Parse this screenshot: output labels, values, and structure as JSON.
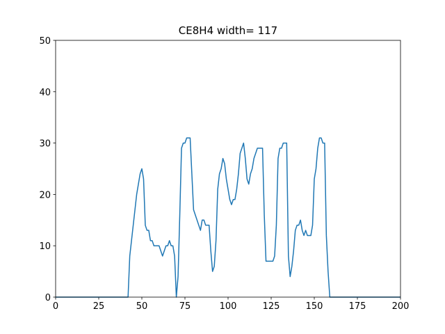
{
  "chart_data": {
    "type": "line",
    "title": "CE8H4 width= 117",
    "x": [
      0,
      1,
      2,
      3,
      4,
      5,
      6,
      7,
      8,
      9,
      10,
      11,
      12,
      13,
      14,
      15,
      16,
      17,
      18,
      19,
      20,
      21,
      22,
      23,
      24,
      25,
      26,
      27,
      28,
      29,
      30,
      31,
      32,
      33,
      34,
      35,
      36,
      37,
      38,
      39,
      40,
      41,
      42,
      43,
      44,
      45,
      46,
      47,
      48,
      49,
      50,
      51,
      52,
      53,
      54,
      55,
      56,
      57,
      58,
      59,
      60,
      61,
      62,
      63,
      64,
      65,
      66,
      67,
      68,
      69,
      70,
      71,
      72,
      73,
      74,
      75,
      76,
      77,
      78,
      79,
      80,
      81,
      82,
      83,
      84,
      85,
      86,
      87,
      88,
      89,
      90,
      91,
      92,
      93,
      94,
      95,
      96,
      97,
      98,
      99,
      100,
      101,
      102,
      103,
      104,
      105,
      106,
      107,
      108,
      109,
      110,
      111,
      112,
      113,
      114,
      115,
      116,
      117,
      118,
      119,
      120,
      121,
      122,
      123,
      124,
      125,
      126,
      127,
      128,
      129,
      130,
      131,
      132,
      133,
      134,
      135,
      136,
      137,
      138,
      139,
      140,
      141,
      142,
      143,
      144,
      145,
      146,
      147,
      148,
      149,
      150,
      151,
      152,
      153,
      154,
      155,
      156,
      157,
      158,
      159,
      160,
      161,
      162,
      163,
      164,
      165,
      166,
      167,
      168,
      169,
      170,
      171,
      172,
      173,
      174,
      175,
      176,
      177,
      178,
      179,
      180,
      181,
      182,
      183,
      184,
      185,
      186,
      187,
      188,
      189,
      190,
      191,
      192,
      193,
      194,
      195,
      196,
      197,
      198,
      199,
      200
    ],
    "series": [
      {
        "color": "#1f77b4",
        "values": [
          0,
          0,
          0,
          0,
          0,
          0,
          0,
          0,
          0,
          0,
          0,
          0,
          0,
          0,
          0,
          0,
          0,
          0,
          0,
          0,
          0,
          0,
          0,
          0,
          0,
          0,
          0,
          0,
          0,
          0,
          0,
          0,
          0,
          0,
          0,
          0,
          0,
          0,
          0,
          0,
          0,
          0,
          0,
          8,
          11,
          14,
          17,
          20,
          22,
          24,
          25,
          23,
          14,
          13,
          13,
          11,
          11,
          10,
          10,
          10,
          10,
          9,
          8,
          9,
          10,
          10,
          11,
          10,
          10,
          8,
          0,
          4,
          16,
          29,
          30,
          30,
          31,
          31,
          31,
          24,
          17,
          16,
          15,
          14,
          13,
          15,
          15,
          14,
          14,
          14,
          9,
          5,
          6,
          11,
          21,
          24,
          25,
          27,
          26,
          23,
          21,
          19,
          18,
          19,
          19,
          21,
          24,
          28,
          29,
          30,
          27,
          23,
          22,
          24,
          25,
          27,
          28,
          29,
          29,
          29,
          29,
          16,
          7,
          7,
          7,
          7,
          7,
          8,
          14,
          27,
          29,
          29,
          30,
          30,
          30,
          8,
          4,
          6,
          9,
          13,
          14,
          14,
          15,
          13,
          12,
          13,
          12,
          12,
          12,
          14,
          23,
          25,
          29,
          31,
          31,
          30,
          30,
          12,
          5,
          0,
          0,
          0,
          0,
          0,
          0,
          0,
          0,
          0,
          0,
          0,
          0,
          0,
          0,
          0,
          0,
          0,
          0,
          0,
          0,
          0,
          0,
          0,
          0,
          0,
          0,
          0,
          0,
          0,
          0,
          0,
          0,
          0,
          0,
          0,
          0,
          0,
          0,
          0,
          0,
          0,
          0
        ]
      }
    ],
    "xlim": [
      0,
      200
    ],
    "xticks": [
      0,
      25,
      50,
      75,
      100,
      125,
      150,
      175,
      200
    ],
    "ylim": [
      0,
      50
    ],
    "yticks": [
      0,
      10,
      20,
      30,
      40,
      50
    ],
    "grid": false
  }
}
